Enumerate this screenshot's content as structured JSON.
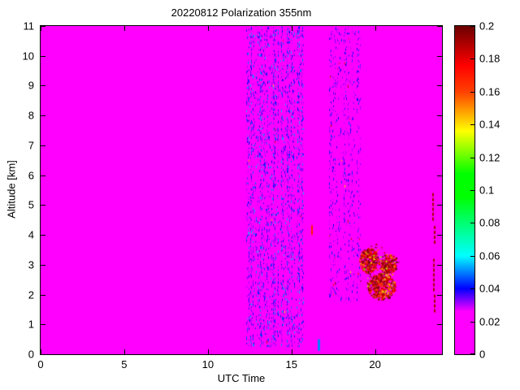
{
  "chart_data": {
    "type": "heatmap",
    "title": "20220812 Polarization 355nm",
    "xlabel": "UTC Time",
    "ylabel": "Altitude [km]",
    "xlim": [
      0,
      24
    ],
    "ylim": [
      0,
      11
    ],
    "grid": false,
    "xticks": [
      0,
      5,
      10,
      15,
      20
    ],
    "xtick_labels": [
      "0",
      "5",
      "10",
      "15",
      "20"
    ],
    "yticks": [
      0,
      1,
      2,
      3,
      4,
      5,
      6,
      7,
      8,
      9,
      10,
      11
    ],
    "ytick_labels": [
      "0",
      "1",
      "2",
      "3",
      "4",
      "5",
      "6",
      "7",
      "8",
      "9",
      "10",
      "11"
    ],
    "colorbar": {
      "min": 0,
      "max": 0.2,
      "ticks": [
        0,
        0.02,
        0.04,
        0.06,
        0.08,
        0.1,
        0.12,
        0.14,
        0.16,
        0.18,
        0.2
      ],
      "tick_labels": [
        "0",
        "0.02",
        "0.04",
        "0.06",
        "0.08",
        "0.1",
        "0.12",
        "0.14",
        "0.16",
        "0.18",
        "0.2"
      ],
      "position": "right"
    },
    "colormap_stops": [
      [
        0.0,
        "#ff00ff"
      ],
      [
        0.13,
        "#ff00ff"
      ],
      [
        0.2,
        "#0000ff"
      ],
      [
        0.3,
        "#00ffff"
      ],
      [
        0.48,
        "#00ff00"
      ],
      [
        0.55,
        "#00ff00"
      ],
      [
        0.68,
        "#ffff00"
      ],
      [
        0.8,
        "#ff4000"
      ],
      [
        0.88,
        "#ff0000"
      ],
      [
        1.0,
        "#6b0000"
      ]
    ],
    "background_value": 0,
    "noise_bands": [
      {
        "x0": 12.3,
        "x1": 15.65,
        "y0": 0.3,
        "y1": 11,
        "density_min": 0.03,
        "density_max": 0.45,
        "vmax": 0.055,
        "p_dark": 0.003
      },
      {
        "x0": 17.25,
        "x1": 19.05,
        "y0": 1.8,
        "y1": 11,
        "density_min": 0.015,
        "density_max": 0.22,
        "vmax": 0.045,
        "p_dark": 0.015
      }
    ],
    "clusters": [
      {
        "cx": 19.6,
        "cy": 3.15,
        "rx": 0.55,
        "ry": 0.42,
        "n": 300,
        "vmin": 0.12,
        "vmax": 0.2
      },
      {
        "cx": 20.35,
        "cy": 2.3,
        "rx": 0.85,
        "ry": 0.45,
        "n": 430,
        "vmin": 0.12,
        "vmax": 0.2
      },
      {
        "cx": 20.75,
        "cy": 3.05,
        "rx": 0.55,
        "ry": 0.32,
        "n": 220,
        "vmin": 0.12,
        "vmax": 0.2
      },
      {
        "cx": 20.2,
        "cy": 2.8,
        "rx": 1.25,
        "ry": 0.95,
        "n": 90,
        "vmin": 0.1,
        "vmax": 0.2
      }
    ],
    "dashes": [
      {
        "x": 16.55,
        "y0": 0.12,
        "y1": 0.5,
        "value": 0.05,
        "w": 3,
        "dashed": false
      },
      {
        "x": 16.18,
        "y0": 4.0,
        "y1": 4.32,
        "value": 0.17,
        "w": 2,
        "dashed": false
      },
      {
        "x": 23.42,
        "y0": 4.55,
        "y1": 5.4,
        "value": 0.19,
        "w": 2,
        "dashed": true
      },
      {
        "x": 23.5,
        "y0": 3.75,
        "y1": 4.3,
        "value": 0.19,
        "w": 2,
        "dashed": true
      },
      {
        "x": 23.45,
        "y0": 2.15,
        "y1": 3.2,
        "value": 0.19,
        "w": 2,
        "dashed": true
      },
      {
        "x": 23.52,
        "y0": 1.5,
        "y1": 2.0,
        "value": 0.19,
        "w": 2,
        "dashed": true
      }
    ]
  }
}
